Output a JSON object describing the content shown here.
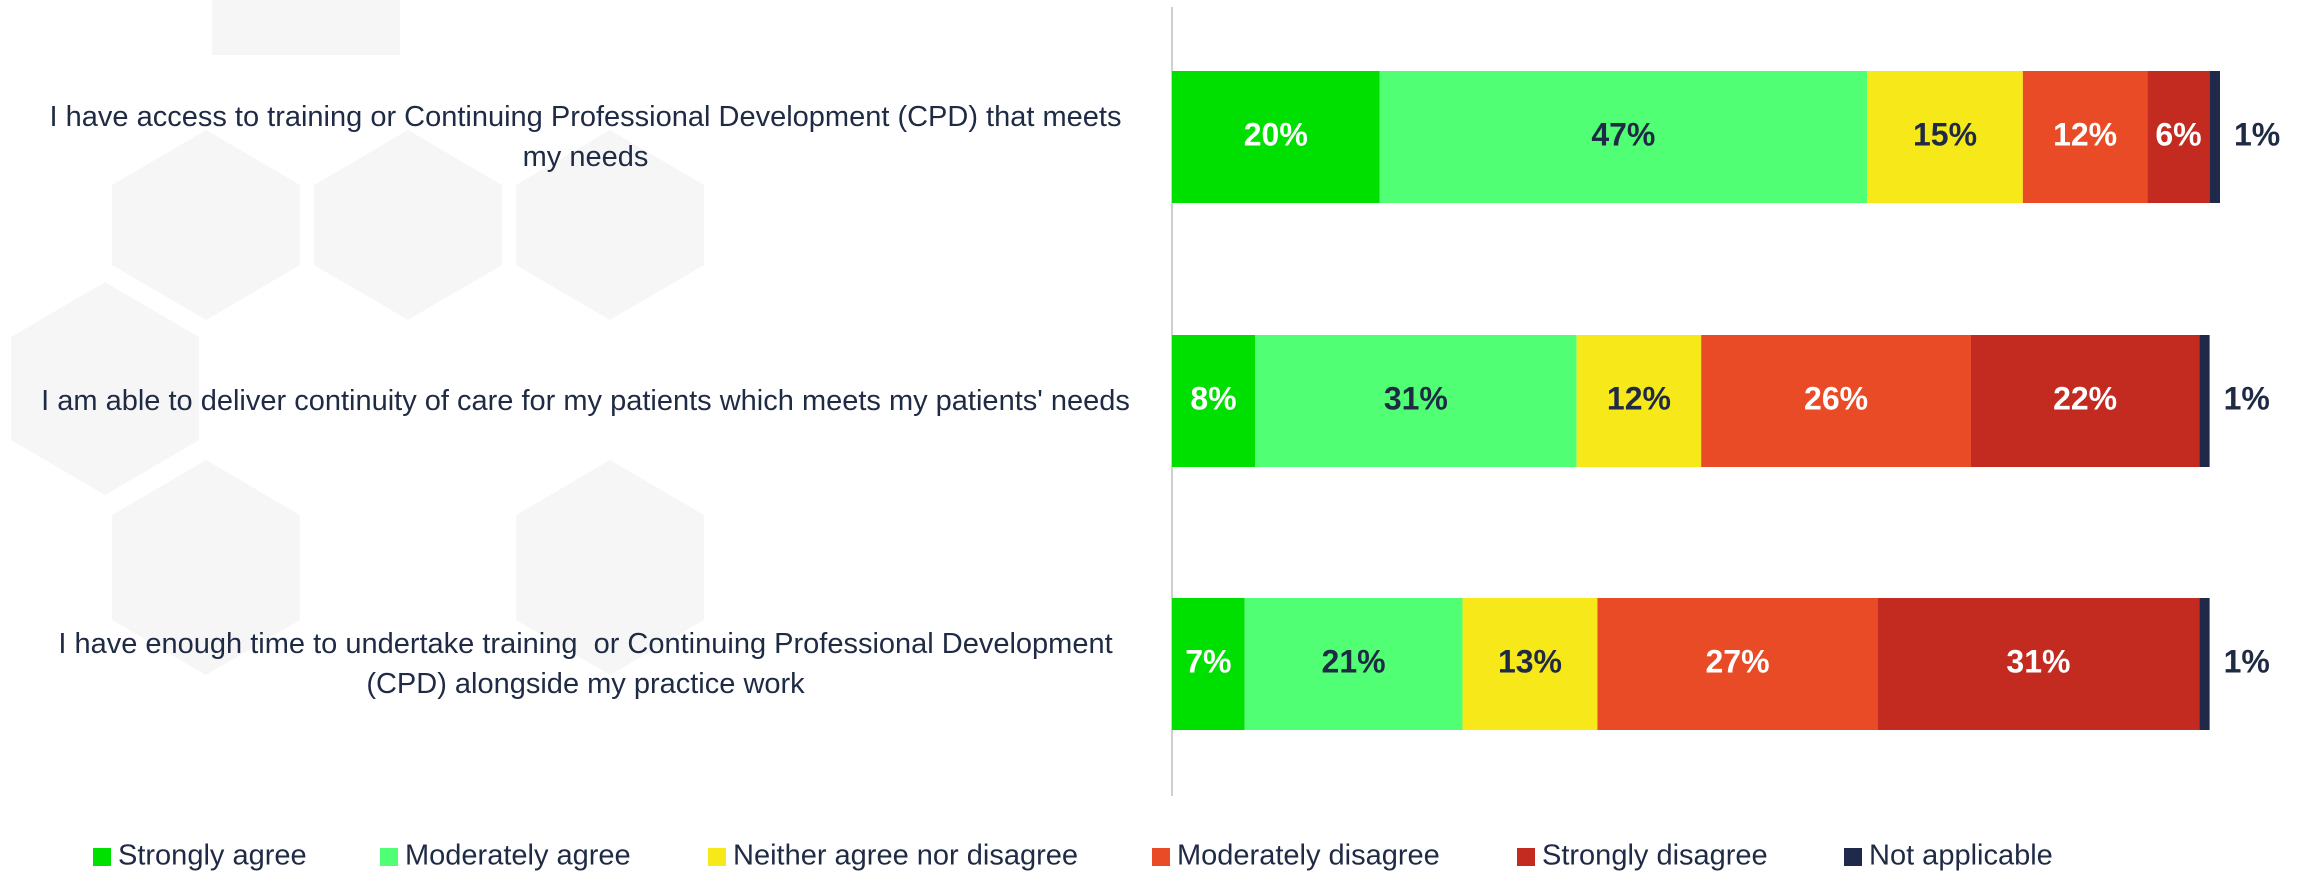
{
  "chart_data": {
    "type": "bar",
    "orientation": "horizontal",
    "stacked": true,
    "categories": [
      "I have access to training or Continuing Professional Development (CPD) that meets my needs",
      "I am able to deliver continuity of care for my patients which meets my patients' needs",
      "I have enough time to undertake training  or Continuing Professional Development (CPD) alongside my practice work"
    ],
    "series": [
      {
        "name": "Strongly agree",
        "color": "#00e000",
        "values": [
          20,
          8,
          7
        ],
        "value_labels": [
          "20%",
          "8%",
          "7%"
        ]
      },
      {
        "name": "Moderately agree",
        "color": "#50ff74",
        "values": [
          47,
          31,
          21
        ],
        "value_labels": [
          "47%",
          "31%",
          "21%"
        ]
      },
      {
        "name": "Neither agree nor disagree",
        "color": "#f7e81a",
        "values": [
          15,
          12,
          13
        ],
        "value_labels": [
          "15%",
          "12%",
          "13%"
        ]
      },
      {
        "name": "Moderately disagree",
        "color": "#e94b27",
        "values": [
          12,
          26,
          27
        ],
        "value_labels": [
          "12%",
          "26%",
          "27%"
        ]
      },
      {
        "name": "Strongly disagree",
        "color": "#c32a20",
        "values": [
          6,
          22,
          31
        ],
        "value_labels": [
          "6%",
          "22%",
          "31%"
        ]
      },
      {
        "name": "Not applicable",
        "color": "#1f2a4a",
        "values": [
          1,
          1,
          1
        ],
        "value_labels": [
          "1%",
          "1%",
          "1%"
        ]
      }
    ],
    "legend": "bottom"
  }
}
